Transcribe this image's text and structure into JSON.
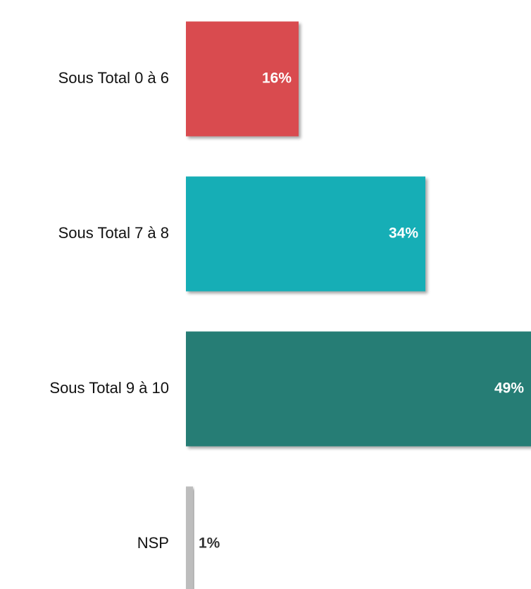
{
  "chart_data": {
    "type": "bar",
    "orientation": "horizontal",
    "categories": [
      "Sous Total 0 à 6",
      "Sous Total 7 à 8",
      "Sous Total 9 à 10",
      "NSP"
    ],
    "values": [
      16,
      34,
      49,
      1
    ],
    "value_labels": [
      "16%",
      "34%",
      "49%",
      "1%"
    ],
    "colors": [
      "#d94c4f",
      "#13aeb6",
      "#287d74",
      "#bdbdbd"
    ],
    "value_label_colors": [
      "#ffffff",
      "#ffffff",
      "#ffffff",
      "#333333"
    ]
  }
}
